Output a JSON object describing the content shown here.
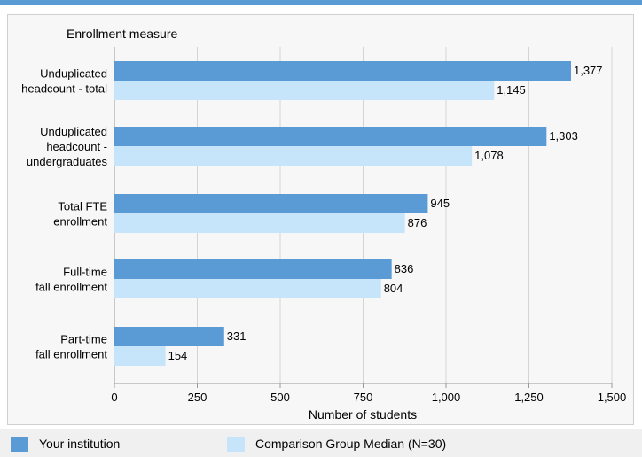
{
  "chart_data": {
    "type": "bar",
    "orientation": "horizontal",
    "title": "",
    "ylabel": "Enrollment measure",
    "xlabel": "Number of students",
    "xlim": [
      0,
      1500
    ],
    "xticks": [
      0,
      250,
      500,
      750,
      1000,
      1250,
      1500
    ],
    "xtick_labels": [
      "0",
      "250",
      "500",
      "750",
      "1,000",
      "1,250",
      "1,500"
    ],
    "grid": "vertical",
    "legend_position": "bottom",
    "categories": [
      [
        "Unduplicated",
        "headcount - total"
      ],
      [
        "Unduplicated",
        "headcount -",
        "undergraduates"
      ],
      [
        "Total FTE",
        "enrollment"
      ],
      [
        "Full-time",
        "fall enrollment"
      ],
      [
        "Part-time",
        "fall enrollment"
      ]
    ],
    "series": [
      {
        "name": "Your institution",
        "color": "#5b9bd5",
        "values": [
          1377,
          1303,
          945,
          836,
          331
        ],
        "labels": [
          "1,377",
          "1,303",
          "945",
          "836",
          "331"
        ]
      },
      {
        "name": "Comparison Group Median (N=30)",
        "color": "#c6e4fa",
        "values": [
          1145,
          1078,
          876,
          804,
          154
        ],
        "labels": [
          "1,145",
          "1,078",
          "876",
          "804",
          "154"
        ]
      }
    ]
  },
  "colors": {
    "accent": "#5b9bd5",
    "comparison": "#c6e4fa"
  }
}
